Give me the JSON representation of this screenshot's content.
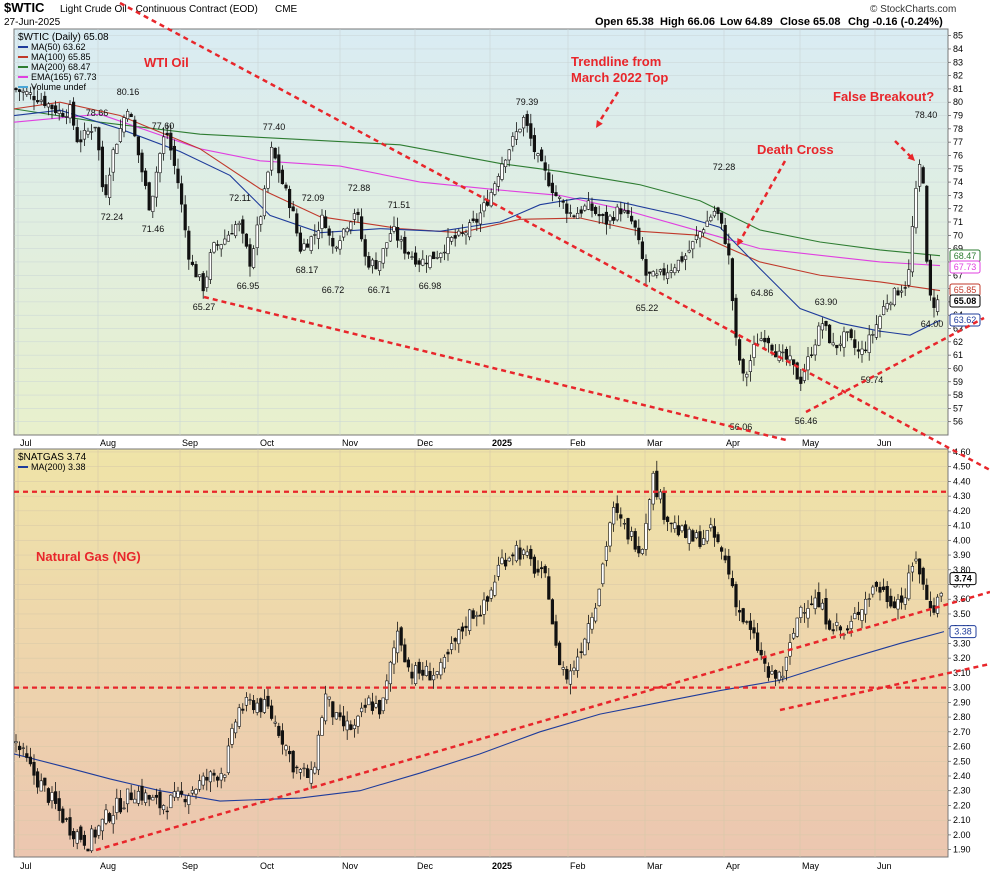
{
  "header": {
    "symbol_title": "$WTIC",
    "symbol_desc": "Light Crude Oil - Continuous Contract (EOD)",
    "exchange": "CME",
    "date": "27-Jun-2025",
    "open": "Open 65.38",
    "high": "High 66.06",
    "low": "Low 64.89",
    "close": "Close 65.08",
    "change": "Chg -0.16 (-0.24%)",
    "watermark": "© StockCharts.com"
  },
  "colors": {
    "oil_bg_top": "#d9ecf3",
    "oil_bg_bottom": "#e8f0cc",
    "ng_bg_top": "#efe4a8",
    "ng_bg_bottom": "#ecc6b0",
    "ma50": "#1f3c9b",
    "ma100": "#c0392b",
    "ma200": "#2e7d32",
    "ema165": "#e040e0",
    "annot": "#e8262b",
    "candle": "#111111"
  },
  "x_months": [
    "Jul",
    "Aug",
    "Sep",
    "Oct",
    "Nov",
    "Dec",
    "2025",
    "Feb",
    "Mar",
    "Apr",
    "May",
    "Jun"
  ],
  "chart_data": [
    {
      "type": "candlestick",
      "title": "$WTIC (Daily) 65.08",
      "legend": [
        {
          "name": "MA(50) 63.62",
          "color": "#1f3c9b"
        },
        {
          "name": "MA(100) 65.85",
          "color": "#c0392b"
        },
        {
          "name": "MA(200) 68.47",
          "color": "#2e7d32"
        },
        {
          "name": "EMA(165) 67.73",
          "color": "#e040e0"
        },
        {
          "name": "Volume undef",
          "color": "#49a6d8"
        }
      ],
      "ylim": [
        55,
        85.5
      ],
      "yticks": [
        56,
        57,
        58,
        59,
        60,
        61,
        62,
        63,
        64,
        65,
        66,
        67,
        68,
        69,
        70,
        71,
        72,
        73,
        74,
        75,
        76,
        77,
        78,
        79,
        80,
        81,
        82,
        83,
        84,
        85
      ],
      "x_range": [
        "Jul 2024",
        "Jun 2025"
      ],
      "key_points": [
        {
          "x": "2024-07",
          "y": 78.66
        },
        {
          "x": "2024-08",
          "y": 80.16
        },
        {
          "x": "2024-08",
          "y": 72.24
        },
        {
          "x": "2024-08",
          "y": 77.6
        },
        {
          "x": "2024-09",
          "y": 71.46
        },
        {
          "x": "2024-09",
          "y": 65.27
        },
        {
          "x": "2024-09",
          "y": 72.11
        },
        {
          "x": "2024-10",
          "y": 77.4
        },
        {
          "x": "2024-10",
          "y": 66.95
        },
        {
          "x": "2024-10",
          "y": 72.09
        },
        {
          "x": "2024-10",
          "y": 68.17
        },
        {
          "x": "2024-11",
          "y": 72.88
        },
        {
          "x": "2024-11",
          "y": 66.72
        },
        {
          "x": "2024-11",
          "y": 71.51
        },
        {
          "x": "2024-11",
          "y": 66.71
        },
        {
          "x": "2024-12",
          "y": 66.98
        },
        {
          "x": "2025-01",
          "y": 79.39
        },
        {
          "x": "2025-03",
          "y": 65.22
        },
        {
          "x": "2025-04",
          "y": 72.28
        },
        {
          "x": "2025-04",
          "y": 56.06
        },
        {
          "x": "2025-04",
          "y": 64.86
        },
        {
          "x": "2025-05",
          "y": 56.46
        },
        {
          "x": "2025-05",
          "y": 63.9
        },
        {
          "x": "2025-06",
          "y": 59.74
        },
        {
          "x": "2025-06",
          "y": 78.4
        },
        {
          "x": "2025-06",
          "y": 64.0
        }
      ],
      "price_labels": [
        "78.66",
        "80.16",
        "72.24",
        "77.60",
        "71.46",
        "65.27",
        "72.11",
        "77.40",
        "66.95",
        "72.09",
        "68.17",
        "72.88",
        "66.72",
        "71.51",
        "66.71",
        "66.98",
        "79.39",
        "65.22",
        "72.28",
        "56.06",
        "64.86",
        "56.46",
        "63.90",
        "59.74",
        "78.40",
        "64.00"
      ],
      "last_value_tags": [
        "68.47",
        "67.73",
        "65.85",
        "65.08",
        "63.62"
      ],
      "annotations": [
        "WTI Oil",
        "Trendline from",
        "March 2022 Top",
        "Death Cross",
        "False Breakout?"
      ]
    },
    {
      "type": "candlestick",
      "title": "$NATGAS 3.74",
      "legend": [
        {
          "name": "MA(200) 3.38",
          "color": "#1f3c9b"
        }
      ],
      "ylim": [
        1.85,
        4.62
      ],
      "yticks": [
        1.9,
        2.0,
        2.1,
        2.2,
        2.3,
        2.4,
        2.5,
        2.6,
        2.7,
        2.8,
        2.9,
        3.0,
        3.1,
        3.2,
        3.3,
        3.4,
        3.5,
        3.6,
        3.7,
        3.8,
        3.9,
        4.0,
        4.1,
        4.2,
        4.3,
        4.4,
        4.5,
        4.6
      ],
      "ytick_labels": [
        "1.90",
        "2.00",
        "2.10",
        "2.20",
        "2.30",
        "2.40",
        "2.50",
        "2.60",
        "2.70",
        "2.80",
        "2.90",
        "3.00",
        "3.10",
        "3.20",
        "3.30",
        "3.40",
        "3.50",
        "3.60",
        "3.70",
        "3.80",
        "3.90",
        "4.00",
        "4.10",
        "4.20",
        "4.30",
        "4.40",
        "4.50",
        "4.60"
      ],
      "x_range": [
        "Jul 2024",
        "Jun 2025"
      ],
      "horizontal_levels": [
        4.33,
        3.0
      ],
      "last_value_tags": [
        "3.74",
        "3.38"
      ],
      "annotations": [
        "Natural Gas (NG)"
      ]
    }
  ]
}
